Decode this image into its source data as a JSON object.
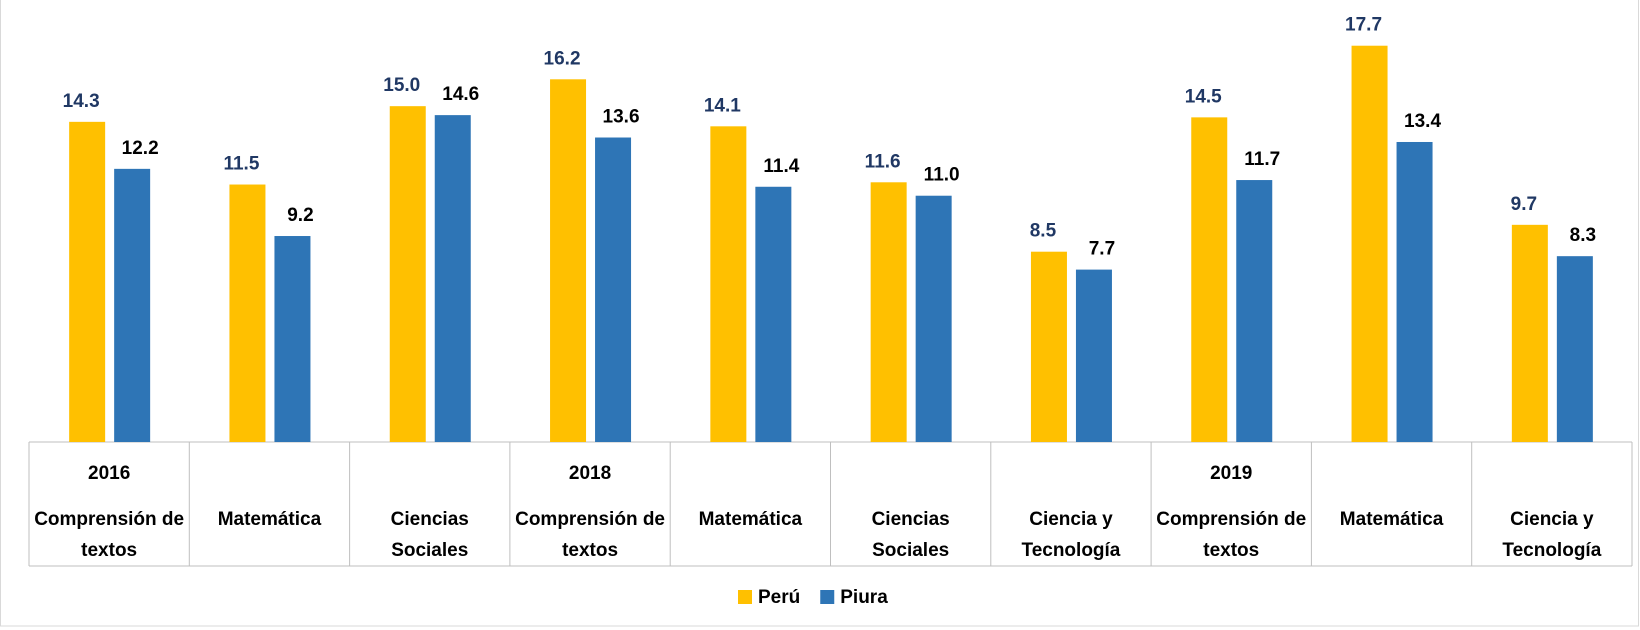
{
  "chart_data": {
    "type": "bar",
    "years": [
      "2016",
      null,
      null,
      "2018",
      null,
      null,
      null,
      "2019",
      null,
      null
    ],
    "categories": [
      "Comprensión de textos",
      "Matemática",
      "Ciencias Sociales",
      "Comprensión de textos",
      "Matemática",
      "Ciencias Sociales",
      "Ciencia y Tecnología",
      "Comprensión de textos",
      "Matemática",
      "Ciencia y Tecnología"
    ],
    "series": [
      {
        "name": "Perú",
        "color": "#FFC000",
        "label_color": "#203864",
        "values": [
          14.3,
          11.5,
          15.0,
          16.2,
          14.1,
          11.6,
          8.5,
          14.5,
          17.7,
          9.7
        ],
        "value_labels": [
          "14.3",
          "11.5",
          "15.0",
          "16.2",
          "14.1",
          "11.6",
          "8.5",
          "14.5",
          "17.7",
          "9.7"
        ]
      },
      {
        "name": "Piura",
        "color": "#2E75B6",
        "label_color": "#000000",
        "values": [
          12.2,
          9.2,
          14.6,
          13.6,
          11.4,
          11.0,
          7.7,
          11.7,
          13.4,
          8.3
        ],
        "value_labels": [
          "12.2",
          "9.2",
          "14.6",
          "13.6",
          "11.4",
          "11.0",
          "7.7",
          "11.7",
          "13.4",
          "8.3"
        ]
      }
    ],
    "ylim": [
      0,
      18
    ],
    "legend": "bottom"
  }
}
